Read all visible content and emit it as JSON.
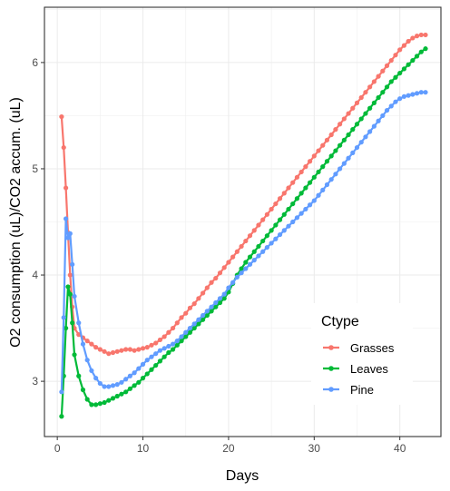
{
  "chart_data": {
    "type": "line",
    "xlabel": "Days",
    "ylabel": "O2 consumption (uL)/CO2 accum. (uL)",
    "xlim": [
      -1.5,
      44.8
    ],
    "ylim": [
      2.48,
      6.52
    ],
    "x_ticks": [
      0,
      10,
      20,
      30,
      40
    ],
    "y_ticks": [
      3,
      4,
      5,
      6
    ],
    "x_tick_labels": [
      "0",
      "10",
      "20",
      "30",
      "40"
    ],
    "y_tick_labels": [
      "3",
      "4",
      "5",
      "6"
    ],
    "grid": true,
    "legend": {
      "title": "Ctype",
      "position": "right"
    },
    "series": [
      {
        "name": "Grasses",
        "color": "#F8766D",
        "x": [
          0.5,
          0.75,
          1,
          1.25,
          1.5,
          1.75,
          2,
          2.5,
          3,
          3.5,
          4,
          4.5,
          5,
          5.5,
          6,
          6.5,
          7,
          7.5,
          8,
          8.5,
          9,
          9.5,
          10,
          10.5,
          11,
          11.5,
          12,
          12.5,
          13,
          13.5,
          14,
          14.5,
          15,
          15.5,
          16,
          16.5,
          17,
          17.5,
          18,
          18.5,
          19,
          19.5,
          20,
          20.5,
          21,
          21.5,
          22,
          22.5,
          23,
          23.5,
          24,
          24.5,
          25,
          25.5,
          26,
          26.5,
          27,
          27.5,
          28,
          28.5,
          29,
          29.5,
          30,
          30.5,
          31,
          31.5,
          32,
          32.5,
          33,
          33.5,
          34,
          34.5,
          35,
          35.5,
          36,
          36.5,
          37,
          37.5,
          38,
          38.5,
          39,
          39.5,
          40,
          40.5,
          41,
          41.5,
          42,
          42.5,
          43
        ],
        "y": [
          5.49,
          5.2,
          4.82,
          4.4,
          4.0,
          3.7,
          3.5,
          3.44,
          3.41,
          3.38,
          3.35,
          3.32,
          3.3,
          3.28,
          3.26,
          3.27,
          3.28,
          3.29,
          3.3,
          3.3,
          3.29,
          3.3,
          3.31,
          3.32,
          3.34,
          3.36,
          3.39,
          3.42,
          3.46,
          3.5,
          3.55,
          3.6,
          3.64,
          3.69,
          3.73,
          3.78,
          3.83,
          3.88,
          3.93,
          3.97,
          4.02,
          4.07,
          4.12,
          4.17,
          4.22,
          4.27,
          4.32,
          4.37,
          4.42,
          4.47,
          4.52,
          4.57,
          4.62,
          4.67,
          4.72,
          4.77,
          4.82,
          4.87,
          4.92,
          4.97,
          5.02,
          5.07,
          5.12,
          5.17,
          5.22,
          5.27,
          5.32,
          5.37,
          5.42,
          5.47,
          5.52,
          5.57,
          5.62,
          5.67,
          5.72,
          5.77,
          5.82,
          5.87,
          5.92,
          5.97,
          6.02,
          6.07,
          6.12,
          6.16,
          6.2,
          6.23,
          6.25,
          6.26,
          6.26
        ]
      },
      {
        "name": "Leaves",
        "color": "#00BA38",
        "x": [
          0.5,
          0.75,
          1,
          1.25,
          1.5,
          1.75,
          2,
          2.5,
          3,
          3.5,
          4,
          4.5,
          5,
          5.5,
          6,
          6.5,
          7,
          7.5,
          8,
          8.5,
          9,
          9.5,
          10,
          10.5,
          11,
          11.5,
          12,
          12.5,
          13,
          13.5,
          14,
          14.5,
          15,
          15.5,
          16,
          16.5,
          17,
          17.5,
          18,
          18.5,
          19,
          19.5,
          20,
          20.5,
          21,
          21.5,
          22,
          22.5,
          23,
          23.5,
          24,
          24.5,
          25,
          25.5,
          26,
          26.5,
          27,
          27.5,
          28,
          28.5,
          29,
          29.5,
          30,
          30.5,
          31,
          31.5,
          32,
          32.5,
          33,
          33.5,
          34,
          34.5,
          35,
          35.5,
          36,
          36.5,
          37,
          37.5,
          38,
          38.5,
          39,
          39.5,
          40,
          40.5,
          41,
          41.5,
          42,
          42.5,
          43
        ],
        "y": [
          2.67,
          3.05,
          3.5,
          3.89,
          3.82,
          3.55,
          3.25,
          3.05,
          2.92,
          2.83,
          2.78,
          2.78,
          2.79,
          2.8,
          2.82,
          2.84,
          2.86,
          2.88,
          2.9,
          2.93,
          2.96,
          2.99,
          3.03,
          3.07,
          3.11,
          3.15,
          3.19,
          3.23,
          3.27,
          3.3,
          3.34,
          3.38,
          3.42,
          3.46,
          3.5,
          3.54,
          3.58,
          3.62,
          3.66,
          3.7,
          3.74,
          3.78,
          3.84,
          3.92,
          4.0,
          4.06,
          4.12,
          4.17,
          4.22,
          4.27,
          4.32,
          4.37,
          4.42,
          4.47,
          4.52,
          4.57,
          4.62,
          4.67,
          4.72,
          4.77,
          4.82,
          4.87,
          4.92,
          4.97,
          5.02,
          5.07,
          5.12,
          5.17,
          5.22,
          5.27,
          5.32,
          5.37,
          5.42,
          5.47,
          5.52,
          5.57,
          5.62,
          5.67,
          5.72,
          5.77,
          5.82,
          5.86,
          5.9,
          5.94,
          5.98,
          6.02,
          6.06,
          6.1,
          6.13
        ]
      },
      {
        "name": "Pine",
        "color": "#619CFF",
        "x": [
          0.5,
          0.75,
          1,
          1.25,
          1.5,
          1.75,
          2,
          2.5,
          3,
          3.5,
          4,
          4.5,
          5,
          5.5,
          6,
          6.5,
          7,
          7.5,
          8,
          8.5,
          9,
          9.5,
          10,
          10.5,
          11,
          11.5,
          12,
          12.5,
          13,
          13.5,
          14,
          14.5,
          15,
          15.5,
          16,
          16.5,
          17,
          17.5,
          18,
          18.5,
          19,
          19.5,
          20,
          20.5,
          21,
          21.5,
          22,
          22.5,
          23,
          23.5,
          24,
          24.5,
          25,
          25.5,
          26,
          26.5,
          27,
          27.5,
          28,
          28.5,
          29,
          29.5,
          30,
          30.5,
          31,
          31.5,
          32,
          32.5,
          33,
          33.5,
          34,
          34.5,
          35,
          35.5,
          36,
          36.5,
          37,
          37.5,
          38,
          38.5,
          39,
          39.5,
          40,
          40.5,
          41,
          41.5,
          42,
          42.5,
          43
        ],
        "y": [
          2.9,
          3.6,
          4.53,
          4.35,
          4.39,
          4.1,
          3.8,
          3.55,
          3.35,
          3.2,
          3.1,
          3.03,
          2.98,
          2.95,
          2.95,
          2.96,
          2.97,
          2.99,
          3.02,
          3.05,
          3.08,
          3.12,
          3.16,
          3.2,
          3.23,
          3.26,
          3.29,
          3.31,
          3.33,
          3.35,
          3.38,
          3.42,
          3.46,
          3.5,
          3.54,
          3.58,
          3.62,
          3.66,
          3.7,
          3.74,
          3.78,
          3.82,
          3.88,
          3.93,
          3.98,
          4.02,
          4.06,
          4.1,
          4.14,
          4.18,
          4.22,
          4.26,
          4.3,
          4.34,
          4.38,
          4.42,
          4.46,
          4.5,
          4.54,
          4.58,
          4.62,
          4.66,
          4.7,
          4.75,
          4.8,
          4.85,
          4.9,
          4.95,
          5.0,
          5.05,
          5.1,
          5.15,
          5.2,
          5.25,
          5.3,
          5.35,
          5.4,
          5.45,
          5.5,
          5.55,
          5.59,
          5.63,
          5.66,
          5.68,
          5.69,
          5.7,
          5.71,
          5.72,
          5.72
        ]
      }
    ]
  }
}
